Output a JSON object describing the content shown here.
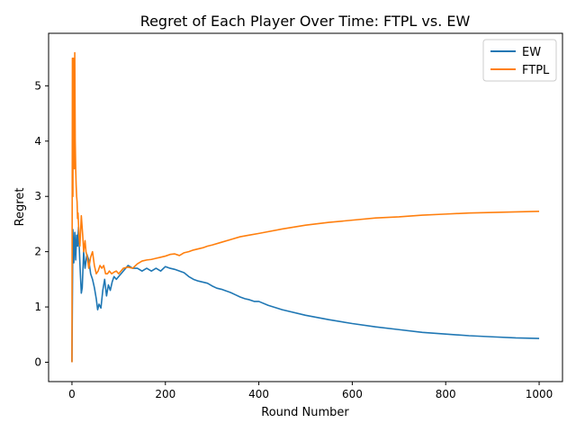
{
  "chart_data": {
    "type": "line",
    "title": "Regret of Each Player Over Time: FTPL vs. EW",
    "xlabel": "Round Number",
    "ylabel": "Regret",
    "xlim": [
      -50,
      1050
    ],
    "ylim": [
      -0.35,
      5.95
    ],
    "xticks": [
      0,
      200,
      400,
      600,
      800,
      1000
    ],
    "yticks": [
      0,
      1,
      2,
      3,
      4,
      5
    ],
    "grid": false,
    "legend_position": "top-right",
    "series": [
      {
        "name": "EW",
        "color": "#1f77b4",
        "x": [
          0,
          2,
          4,
          6,
          8,
          10,
          12,
          14,
          16,
          18,
          20,
          22,
          25,
          28,
          32,
          36,
          40,
          44,
          48,
          52,
          55,
          58,
          62,
          66,
          70,
          74,
          78,
          82,
          86,
          90,
          95,
          100,
          105,
          110,
          115,
          120,
          130,
          140,
          150,
          160,
          170,
          180,
          190,
          200,
          210,
          220,
          230,
          240,
          250,
          260,
          270,
          280,
          290,
          300,
          310,
          320,
          330,
          340,
          350,
          360,
          370,
          380,
          390,
          400,
          420,
          450,
          500,
          550,
          600,
          650,
          700,
          750,
          800,
          850,
          900,
          950,
          1000
        ],
        "y": [
          0.0,
          2.4,
          1.8,
          2.35,
          1.85,
          2.3,
          2.1,
          2.45,
          2.0,
          1.6,
          1.25,
          1.35,
          2.0,
          1.7,
          1.95,
          1.85,
          1.6,
          1.5,
          1.35,
          1.15,
          0.95,
          1.05,
          0.98,
          1.3,
          1.5,
          1.2,
          1.4,
          1.3,
          1.45,
          1.55,
          1.5,
          1.55,
          1.6,
          1.65,
          1.7,
          1.75,
          1.7,
          1.7,
          1.65,
          1.7,
          1.65,
          1.7,
          1.65,
          1.73,
          1.7,
          1.68,
          1.65,
          1.62,
          1.55,
          1.5,
          1.47,
          1.45,
          1.43,
          1.38,
          1.34,
          1.32,
          1.29,
          1.26,
          1.22,
          1.18,
          1.15,
          1.13,
          1.1,
          1.1,
          1.03,
          0.95,
          0.85,
          0.77,
          0.7,
          0.64,
          0.59,
          0.54,
          0.51,
          0.48,
          0.46,
          0.44,
          0.43
        ]
      },
      {
        "name": "FTPL",
        "color": "#ff7f0e",
        "x": [
          0,
          1,
          2,
          3,
          4,
          5,
          6,
          7,
          8,
          9,
          10,
          11,
          12,
          13,
          15,
          17,
          20,
          23,
          25,
          28,
          30,
          33,
          36,
          40,
          44,
          48,
          52,
          56,
          60,
          64,
          68,
          72,
          76,
          80,
          85,
          90,
          95,
          100,
          110,
          120,
          130,
          140,
          150,
          160,
          170,
          180,
          190,
          200,
          210,
          220,
          230,
          240,
          250,
          260,
          270,
          280,
          290,
          300,
          320,
          340,
          360,
          380,
          400,
          450,
          500,
          550,
          600,
          650,
          700,
          750,
          800,
          850,
          900,
          950,
          1000
        ],
        "y": [
          0.0,
          5.5,
          3.0,
          5.5,
          4.5,
          3.5,
          5.6,
          4.0,
          3.5,
          3.2,
          3.0,
          2.9,
          2.6,
          2.7,
          2.3,
          2.1,
          2.65,
          2.3,
          2.0,
          2.2,
          2.0,
          1.9,
          1.7,
          1.9,
          2.0,
          1.75,
          1.6,
          1.65,
          1.75,
          1.7,
          1.75,
          1.6,
          1.6,
          1.65,
          1.6,
          1.63,
          1.65,
          1.6,
          1.7,
          1.72,
          1.7,
          1.78,
          1.83,
          1.85,
          1.86,
          1.88,
          1.9,
          1.92,
          1.95,
          1.96,
          1.93,
          1.98,
          2.0,
          2.03,
          2.05,
          2.07,
          2.1,
          2.12,
          2.17,
          2.22,
          2.27,
          2.3,
          2.33,
          2.41,
          2.48,
          2.53,
          2.57,
          2.61,
          2.63,
          2.66,
          2.68,
          2.7,
          2.71,
          2.72,
          2.73
        ]
      }
    ]
  }
}
